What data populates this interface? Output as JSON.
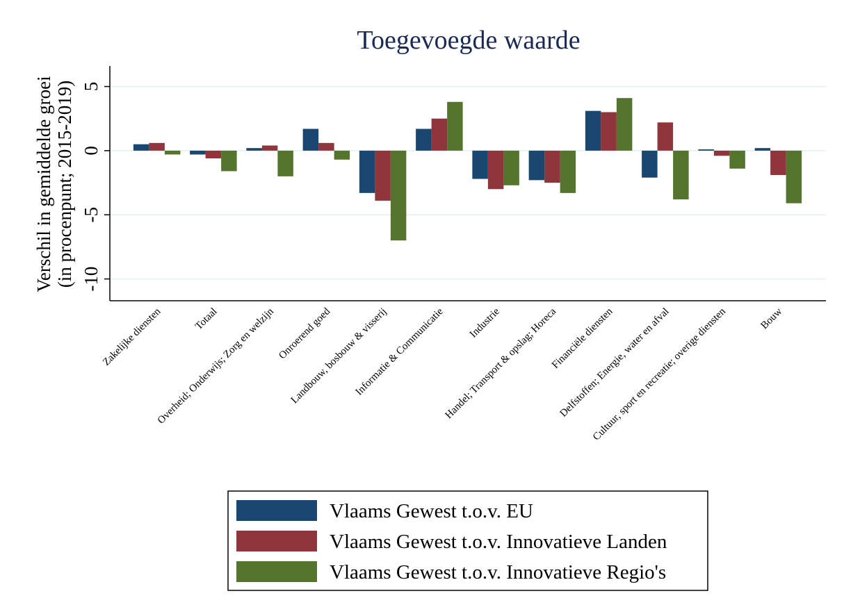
{
  "chart_data": {
    "type": "bar",
    "title": "Toegevoegde waarde",
    "ylabel": [
      "Verschil in gemiddelde groei",
      "(in procenpunt; 2015-2019)"
    ],
    "categories": [
      "Zakelijke diensten",
      "Totaal",
      "Overheid; Onderwijs; Zorg en welzijn",
      "Onroerend goed",
      "Landbouw, bosbouw & visserij",
      "Informatie & Communicatie",
      "Industrie",
      "Handel; Transport & opslag; Horeca",
      "Financiële diensten",
      "Delfstoffen; Energie, water en afval",
      "Cultuur, sport en recreatie; overige diensten",
      "Bouw"
    ],
    "series": [
      {
        "name": "Vlaams Gewest t.o.v. EU",
        "color": "#1a476f",
        "values": [
          0.5,
          -0.3,
          0.2,
          1.7,
          -3.3,
          1.7,
          -2.2,
          -2.3,
          3.1,
          -2.1,
          0.1,
          0.2
        ]
      },
      {
        "name": "Vlaams Gewest t.o.v. Innovatieve Landen",
        "color": "#90353b",
        "values": [
          0.6,
          -0.6,
          0.4,
          0.6,
          -3.9,
          2.5,
          -3.0,
          -2.5,
          3.0,
          2.2,
          -0.4,
          -1.9
        ]
      },
      {
        "name": "Vlaams Gewest t.o.v. Innovatieve Regio's",
        "color": "#55752f",
        "values": [
          -0.3,
          -1.6,
          -2.0,
          -0.7,
          -7.0,
          3.8,
          -2.7,
          -3.3,
          4.1,
          -3.8,
          -1.4,
          -4.1
        ]
      }
    ],
    "ylim": [
      -11.7,
      6.6
    ],
    "yticks": [
      -10,
      -5,
      0,
      5
    ],
    "grid": true
  }
}
